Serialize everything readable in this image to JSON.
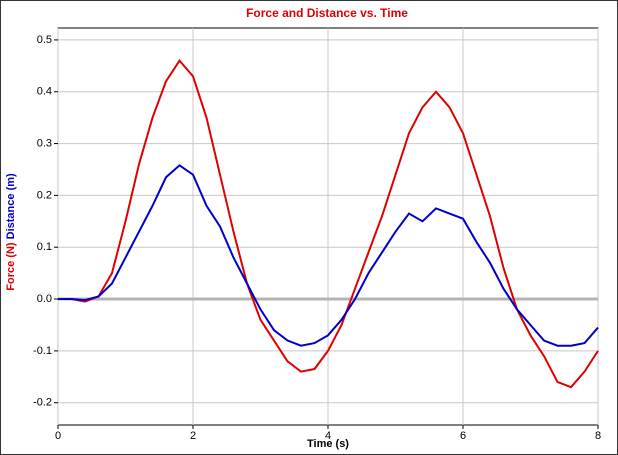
{
  "chart_data": {
    "type": "line",
    "title": "Force and Distance vs. Time",
    "x_label": "Time (s)",
    "x": [
      0,
      0.2,
      0.4,
      0.6,
      0.8,
      1.0,
      1.2,
      1.4,
      1.6,
      1.8,
      2.0,
      2.2,
      2.4,
      2.6,
      2.8,
      3.0,
      3.2,
      3.4,
      3.6,
      3.8,
      4.0,
      4.2,
      4.4,
      4.6,
      4.8,
      5.0,
      5.2,
      5.4,
      5.6,
      5.8,
      6.0,
      6.2,
      6.4,
      6.6,
      6.8,
      7.0,
      7.2,
      7.4,
      7.6,
      7.8,
      8.0
    ],
    "series": [
      {
        "name": "Force (N)",
        "color": "#e00000",
        "values": [
          0,
          0,
          -0.005,
          0.005,
          0.05,
          0.15,
          0.26,
          0.35,
          0.42,
          0.46,
          0.43,
          0.35,
          0.24,
          0.13,
          0.03,
          -0.04,
          -0.08,
          -0.12,
          -0.14,
          -0.135,
          -0.1,
          -0.05,
          0.02,
          0.09,
          0.16,
          0.24,
          0.32,
          0.37,
          0.4,
          0.37,
          0.32,
          0.24,
          0.16,
          0.06,
          -0.02,
          -0.07,
          -0.11,
          -0.16,
          -0.17,
          -0.14,
          -0.1
        ]
      },
      {
        "name": "Distance (m)",
        "color": "#0000c8",
        "values": [
          0,
          0,
          -0.002,
          0.005,
          0.03,
          0.08,
          0.13,
          0.18,
          0.235,
          0.258,
          0.24,
          0.18,
          0.14,
          0.08,
          0.03,
          -0.02,
          -0.06,
          -0.08,
          -0.09,
          -0.085,
          -0.07,
          -0.04,
          0.0,
          0.05,
          0.09,
          0.13,
          0.165,
          0.15,
          0.175,
          0.165,
          0.155,
          0.11,
          0.07,
          0.02,
          -0.02,
          -0.05,
          -0.08,
          -0.09,
          -0.09,
          -0.085,
          -0.055
        ]
      }
    ],
    "xlim": [
      0,
      8
    ],
    "xticks": [
      0,
      2,
      4,
      6,
      8
    ],
    "ylim": [
      -0.243,
      0.523
    ],
    "yticks": [
      0.5,
      0.4,
      0.3,
      0.2,
      0.1,
      {
        "value": 0,
        "label": "0.0"
      },
      -0.1,
      -0.2
    ],
    "grid": true
  }
}
